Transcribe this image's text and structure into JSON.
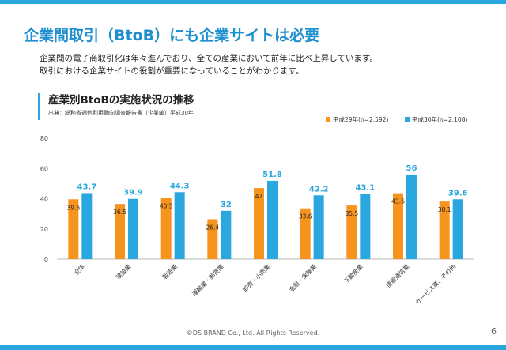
{
  "slide": {
    "title": "企業間取引（BtoB）にも企業サイトは必要",
    "intro_lines": [
      "企業間の電子商取引化は年々進んでおり、全ての産業において前年に比べ上昇しています。",
      "取引における企業サイトの役割が重要になっていることがわかります。"
    ],
    "footer": "©DS BRAND Co., Ltd. All Rights Reserved.",
    "page_number": "6"
  },
  "colors": {
    "accent": "#2aa7de",
    "title": "#1e8fcf",
    "series_2017": "#f7941d",
    "series_2018": "#2aa7de"
  },
  "chart_data": {
    "type": "bar",
    "title": "産業別BtoBの実施状況の推移",
    "source": "出典：総務省通信利用動向調査報告書（企業編）平成30年",
    "categories": [
      "全体",
      "建設業",
      "製造業",
      "運輸業・郵便業",
      "卸売・小売業",
      "金融・保険業",
      "不動産業",
      "情報通信業",
      "サービス業、その他"
    ],
    "series": [
      {
        "name": "平成29年(n=2,592)",
        "values": [
          39.6,
          36.5,
          40.5,
          26.4,
          47,
          33.6,
          35.5,
          43.6,
          38.1
        ]
      },
      {
        "name": "平成30年(n=2,108)",
        "values": [
          43.7,
          39.9,
          44.3,
          32,
          51.8,
          42.2,
          43.1,
          56,
          39.6
        ]
      }
    ],
    "ylim": [
      0,
      80
    ],
    "yticks": [
      0,
      20,
      40,
      60,
      80
    ],
    "legend": "top-right",
    "grid": false
  }
}
